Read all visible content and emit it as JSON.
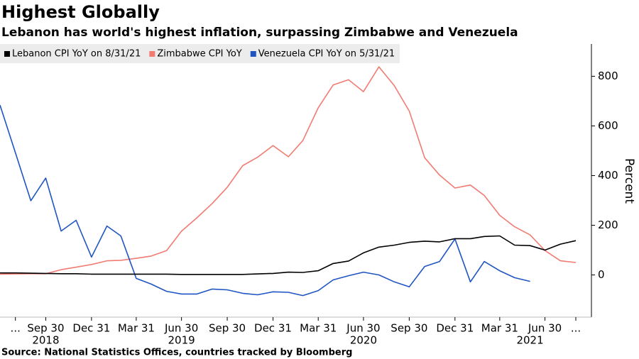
{
  "chart_data": {
    "type": "line",
    "title": "Highest Globally",
    "subtitle": "Lebanon has world's highest inflation, surpassing Zimbabwe and Venezuela",
    "ylabel": "Percent",
    "source": "Source: National Statistics Offices, countries tracked by Bloomberg",
    "x": [
      "2018-06-30",
      "2018-07-31",
      "2018-08-31",
      "2018-09-30",
      "2018-10-31",
      "2018-11-30",
      "2018-12-31",
      "2019-01-31",
      "2019-02-28",
      "2019-03-31",
      "2019-04-30",
      "2019-05-31",
      "2019-06-30",
      "2019-07-31",
      "2019-08-31",
      "2019-09-30",
      "2019-10-31",
      "2019-11-30",
      "2019-12-31",
      "2020-01-31",
      "2020-02-29",
      "2020-03-31",
      "2020-04-30",
      "2020-05-31",
      "2020-06-30",
      "2020-07-31",
      "2020-08-31",
      "2020-09-30",
      "2020-10-31",
      "2020-11-30",
      "2020-12-31",
      "2021-01-31",
      "2021-02-28",
      "2021-03-31",
      "2021-04-30",
      "2021-05-31",
      "2021-06-30",
      "2021-07-31",
      "2021-08-31"
    ],
    "series": [
      {
        "name": "Lebanon CPI YoY on 8/31/21",
        "color": "#000000",
        "values": [
          8,
          8,
          7,
          6,
          5,
          5,
          3,
          3,
          3,
          3,
          3,
          3,
          2,
          2,
          2,
          2,
          2,
          4,
          6,
          11,
          10,
          17,
          46,
          56,
          89,
          112,
          120,
          131,
          136,
          133,
          146,
          146,
          155,
          157,
          120,
          118,
          100,
          124,
          138
        ]
      },
      {
        "name": "Zimbabwe CPI YoY",
        "color": "#f07c73",
        "values": [
          3,
          4,
          5,
          5,
          21,
          31,
          42,
          57,
          59,
          67,
          76,
          98,
          176,
          230,
          288,
          353,
          440,
          474,
          521,
          476,
          541,
          673,
          765,
          786,
          738,
          838,
          762,
          660,
          472,
          402,
          350,
          362,
          320,
          240,
          194,
          161,
          98,
          57,
          50
        ]
      },
      {
        "name": "Venezuela CPI YoY on 5/31/21",
        "color": "#1f55c2",
        "values": [
          684,
          492,
          299,
          390,
          177,
          220,
          72,
          197,
          157,
          -14,
          -37,
          -66,
          -77,
          -77,
          -57,
          -60,
          -74,
          -80,
          -68,
          -70,
          -83,
          -63,
          -20,
          -3,
          11,
          0,
          -28,
          -48,
          34,
          54,
          145,
          -28,
          54,
          17,
          -11,
          -26,
          null,
          null,
          null
        ]
      }
    ],
    "xlim": [
      "2018-06-30",
      "2021-09-30"
    ],
    "xticks": [
      {
        "value": "2018-07-31",
        "label": "..."
      },
      {
        "value": "2018-09-30",
        "label": "Sep 30"
      },
      {
        "value": "2018-12-31",
        "label": "Dec 31"
      },
      {
        "value": "2019-03-31",
        "label": "Mar 31"
      },
      {
        "value": "2019-06-30",
        "label": "Jun 30"
      },
      {
        "value": "2019-09-30",
        "label": "Sep 30"
      },
      {
        "value": "2019-12-31",
        "label": "Dec 31"
      },
      {
        "value": "2020-03-31",
        "label": "Mar 31"
      },
      {
        "value": "2020-06-30",
        "label": "Jun 30"
      },
      {
        "value": "2020-09-30",
        "label": "Sep 30"
      },
      {
        "value": "2020-12-31",
        "label": "Dec 31"
      },
      {
        "value": "2021-03-31",
        "label": "Mar 31"
      },
      {
        "value": "2021-06-30",
        "label": "Jun 30"
      },
      {
        "value": "2021-08-31",
        "label": "..."
      }
    ],
    "xyears": [
      {
        "value": "2018-09-30",
        "label": "2018"
      },
      {
        "value": "2019-06-30",
        "label": "2019"
      },
      {
        "value": "2020-06-30",
        "label": "2020"
      },
      {
        "value": "2021-05-31",
        "label": "2021"
      }
    ],
    "ylim": [
      -170,
      930
    ],
    "yticks": [
      0,
      200,
      400,
      600,
      800
    ],
    "grid": false,
    "legend": "top-left"
  }
}
